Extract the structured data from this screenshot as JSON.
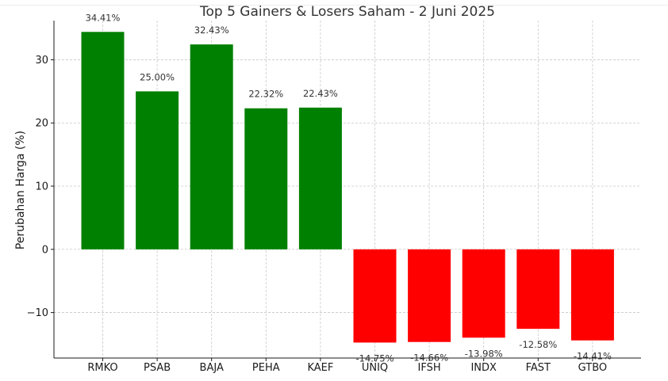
{
  "chart_data": {
    "type": "bar",
    "title": "Top 5 Gainers & Losers Saham - 2 Juni 2025",
    "xlabel": "",
    "ylabel": "Perubahan Harga (%)",
    "categories": [
      "RMKO",
      "PSAB",
      "BAJA",
      "PEHA",
      "KAEF",
      "UNIQ",
      "IFSH",
      "INDX",
      "FAST",
      "GTBO"
    ],
    "values": [
      34.41,
      25.0,
      32.43,
      22.32,
      22.43,
      -14.75,
      -14.66,
      -13.98,
      -12.58,
      -14.41
    ],
    "data_labels": [
      "34.41%",
      "25.00%",
      "32.43%",
      "22.32%",
      "22.43%",
      "-14.75%",
      "-14.66%",
      "-13.98%",
      "-12.58%",
      "-14.41%"
    ],
    "colors": [
      "#008000",
      "#008000",
      "#008000",
      "#008000",
      "#008000",
      "#ff0000",
      "#ff0000",
      "#ff0000",
      "#ff0000",
      "#ff0000"
    ],
    "yticks": [
      -10,
      0,
      10,
      20,
      30
    ],
    "ytick_labels": [
      "−10",
      "0",
      "10",
      "20",
      "30"
    ],
    "ylim": [
      -17.2,
      36.2
    ],
    "grid": true,
    "legend": "none"
  }
}
